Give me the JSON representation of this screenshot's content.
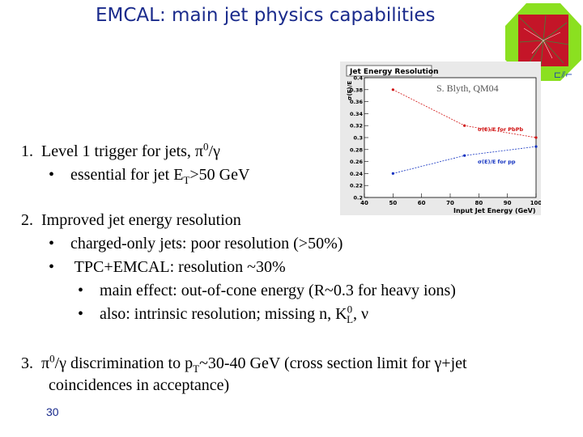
{
  "slide": {
    "title": "EMCAL: main jet physics capabilities",
    "page_number": "30",
    "credit": "S. Blyth, QM04"
  },
  "points": {
    "p1": {
      "num": "1.",
      "text_a": "Level 1 trigger for jets, π",
      "sup": "0",
      "text_b": "/γ"
    },
    "p1_sub": {
      "bullet": "•",
      "text_a": "essential for jet E",
      "sub": "T",
      "text_b": ">50 GeV"
    },
    "p2": {
      "num": "2.",
      "text": "Improved jet energy resolution"
    },
    "p2_sub1": {
      "bullet": "•",
      "text": "charged-only jets: poor resolution (>50%)"
    },
    "p2_sub2": {
      "bullet": "•",
      "text": "TPC+EMCAL: resolution ~30%"
    },
    "p2_sub2a": {
      "bullet": "•",
      "text": "main effect: out-of-cone energy (R~0.3 for heavy ions)"
    },
    "p2_sub2b": {
      "bullet": "•",
      "text_a": "also: intrinsic resolution; missing n, K",
      "sup": "0",
      "sub": "L",
      "text_b": ", ν"
    },
    "p3": {
      "num": "3.",
      "text_a": "π",
      "sup": "0",
      "text_b": "/γ discrimination to p",
      "sub": "T",
      "text_c": "~30-40 GeV (cross section limit for γ+jet",
      "line2": "coincidences in acceptance)"
    }
  },
  "chart_data": {
    "type": "scatter",
    "title": "Jet Energy Resolution",
    "xlabel": "Input Jet Energy (GeV)",
    "ylabel": "σ(E)/E",
    "xlim": [
      40,
      100
    ],
    "ylim": [
      0.2,
      0.4
    ],
    "x_ticks": [
      "40",
      "50",
      "60",
      "70",
      "80",
      "90",
      "100"
    ],
    "y_ticks": [
      "0.2",
      "0.22",
      "0.24",
      "0.26",
      "0.28",
      "0.3",
      "0.32",
      "0.34",
      "0.36",
      "0.38",
      "0.4"
    ],
    "series": [
      {
        "name": "σ(E)/E for PbPb",
        "color": "#d01010",
        "x": [
          50,
          75,
          100
        ],
        "y": [
          0.38,
          0.32,
          0.3
        ]
      },
      {
        "name": "σ(E)/E for pp",
        "color": "#1030c0",
        "x": [
          50,
          75,
          100
        ],
        "y": [
          0.24,
          0.27,
          0.285
        ]
      }
    ]
  },
  "colors": {
    "title": "#1a2b8c",
    "logo_green": "#8be020",
    "logo_red": "#cc1122"
  }
}
